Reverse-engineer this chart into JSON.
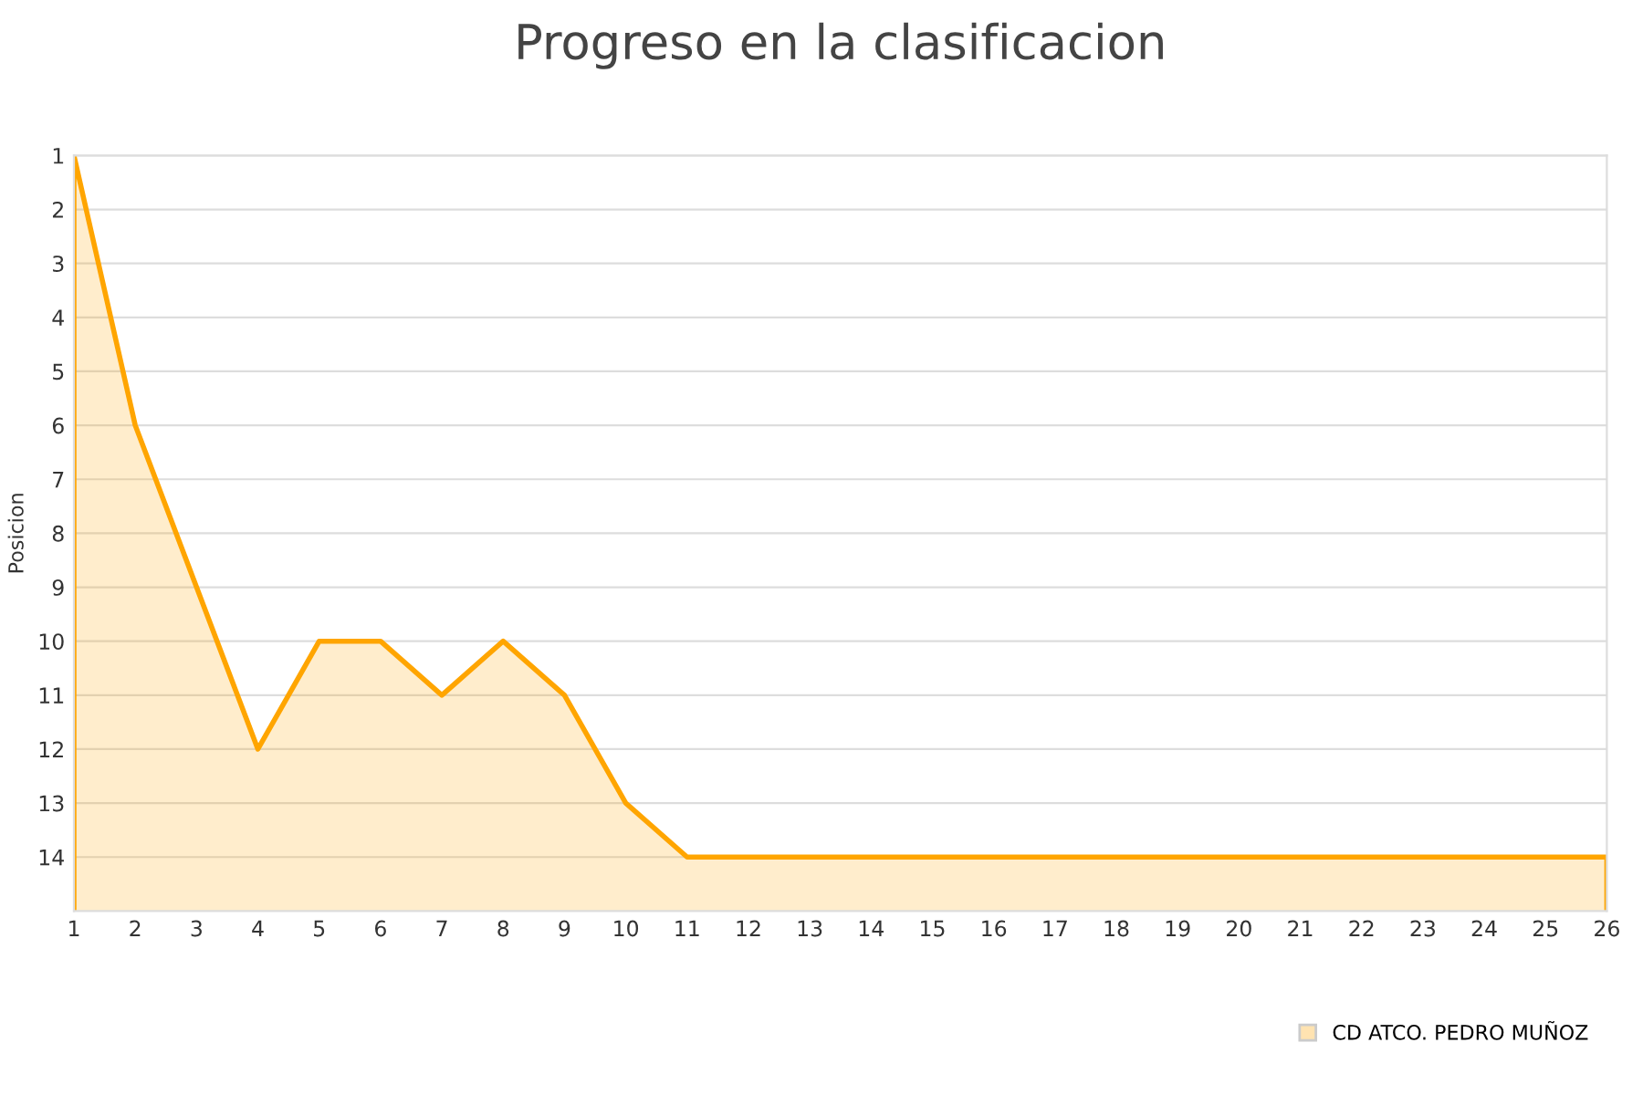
{
  "chart_data": {
    "type": "area",
    "title": "Progreso en la clasificacion",
    "ylabel": "Posicion",
    "x": [
      1,
      2,
      3,
      4,
      5,
      6,
      7,
      8,
      9,
      10,
      11,
      12,
      13,
      14,
      15,
      16,
      17,
      18,
      19,
      20,
      21,
      22,
      23,
      24,
      25,
      26
    ],
    "series": [
      {
        "name": "CD ATCO. PEDRO MUÑOZ",
        "color": "#ffa500",
        "values": [
          1,
          6,
          9,
          12,
          10,
          10,
          11,
          10,
          11,
          13,
          14,
          14,
          14,
          14,
          14,
          14,
          14,
          14,
          14,
          14,
          14,
          14,
          14,
          14,
          14,
          14
        ]
      }
    ],
    "xlim": [
      1,
      26
    ],
    "xticks": [
      1,
      2,
      3,
      4,
      5,
      6,
      7,
      8,
      9,
      10,
      11,
      12,
      13,
      14,
      15,
      16,
      17,
      18,
      19,
      20,
      21,
      22,
      23,
      24,
      25,
      26
    ],
    "ylim": [
      15,
      1
    ],
    "yticks": [
      1,
      2,
      3,
      4,
      5,
      6,
      7,
      8,
      9,
      10,
      11,
      12,
      13,
      14
    ],
    "grid": "y",
    "legend": "bottom right"
  }
}
